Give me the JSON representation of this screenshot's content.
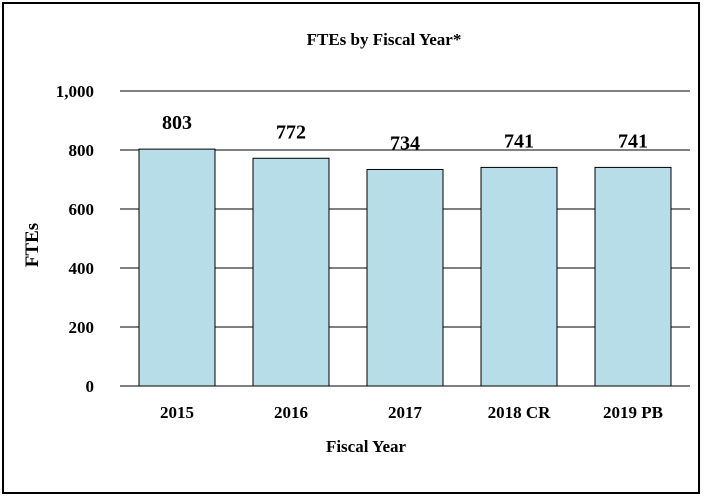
{
  "chart_data": {
    "type": "bar",
    "title": "FTEs by Fiscal Year*",
    "xlabel": "Fiscal Year",
    "ylabel": "FTEs",
    "categories": [
      "2015",
      "2016",
      "2017",
      "2018 CR",
      "2019 PB"
    ],
    "values": [
      803,
      772,
      734,
      741,
      741
    ],
    "data_labels": [
      "803",
      "772",
      "734",
      "741",
      "741"
    ],
    "ylim": [
      0,
      1000
    ],
    "yticks": [
      0,
      200,
      400,
      600,
      800,
      1000
    ],
    "ytick_labels": [
      "0",
      "200",
      "400",
      "600",
      "800",
      "1,000"
    ],
    "grid": true,
    "legend": "none",
    "colors": {
      "bar_fill": "#b7dde8",
      "bar_stroke": "#000000",
      "grid": "#000000",
      "text": "#000000"
    }
  }
}
